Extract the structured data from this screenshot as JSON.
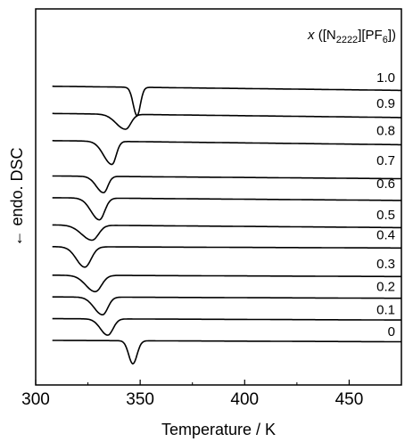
{
  "chart_data": {
    "type": "line",
    "xlabel": "Temperature / K",
    "ylabel": "← endo. DSC",
    "legend_title": {
      "prefix": "x",
      "open": " ([N",
      "sub1": "2222",
      "mid": "][PF",
      "sub2": "6",
      "close": "])"
    },
    "xlim": [
      300,
      475
    ],
    "x_ticks": [
      300,
      350,
      400,
      450
    ],
    "y_tick_labels_shown": false,
    "grid": false,
    "series": [
      {
        "name": "1.0",
        "baseline_offset": 10.0,
        "peak_T": 348.5,
        "depth": 1.05,
        "width_left": 1.8,
        "width_right": 1.6,
        "drift": -0.15,
        "label_offset": 10.0
      },
      {
        "name": "0.9",
        "baseline_offset": 9.0,
        "peak_T": 343.0,
        "depth": 0.55,
        "width_left": 4.5,
        "width_right": 2.5,
        "drift": -0.15,
        "label_offset": 9.05
      },
      {
        "name": "0.8",
        "baseline_offset": 8.0,
        "peak_T": 336.5,
        "depth": 0.85,
        "width_left": 4.0,
        "width_right": 2.0,
        "drift": -0.15,
        "label_offset": 8.05
      },
      {
        "name": "0.7",
        "baseline_offset": 6.7,
        "peak_T": 332.5,
        "depth": 0.6,
        "width_left": 3.5,
        "width_right": 2.0,
        "drift": -0.1,
        "label_offset": 6.95
      },
      {
        "name": "0.6",
        "baseline_offset": 5.9,
        "peak_T": 330.5,
        "depth": 0.8,
        "width_left": 4.0,
        "width_right": 2.5,
        "drift": -0.1,
        "label_offset": 6.1
      },
      {
        "name": "0.5",
        "baseline_offset": 4.9,
        "peak_T": 327.0,
        "depth": 0.55,
        "width_left": 5.0,
        "width_right": 3.0,
        "drift": -0.1,
        "label_offset": 4.95
      },
      {
        "name": "0.4",
        "baseline_offset": 4.1,
        "peak_T": 323.5,
        "depth": 0.75,
        "width_left": 4.0,
        "width_right": 3.0,
        "drift": -0.05,
        "label_offset": 4.2
      },
      {
        "name": "0.3",
        "baseline_offset": 3.05,
        "peak_T": 328.5,
        "depth": 0.6,
        "width_left": 4.5,
        "width_right": 3.0,
        "drift": -0.05,
        "label_offset": 3.15
      },
      {
        "name": "0.2",
        "baseline_offset": 2.25,
        "peak_T": 332.0,
        "depth": 0.65,
        "width_left": 4.0,
        "width_right": 2.5,
        "drift": -0.05,
        "label_offset": 2.3
      },
      {
        "name": "0.1",
        "baseline_offset": 1.45,
        "peak_T": 334.5,
        "depth": 0.6,
        "width_left": 3.5,
        "width_right": 2.5,
        "drift": -0.05,
        "label_offset": 1.45
      },
      {
        "name": "0",
        "baseline_offset": 0.65,
        "peak_T": 346.5,
        "depth": 0.85,
        "width_left": 2.0,
        "width_right": 2.0,
        "drift": -0.05,
        "label_offset": 0.65
      }
    ]
  }
}
